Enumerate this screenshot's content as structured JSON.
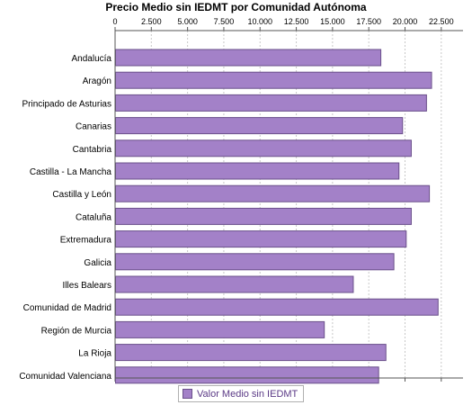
{
  "chart_data": {
    "type": "bar",
    "orientation": "horizontal",
    "title": "Precio Medio sin IEDMT por Comunidad Autónoma",
    "categories": [
      "Andalucía",
      "Aragón",
      "Principado de Asturias",
      "Canarias",
      "Cantabria",
      "Castilla - La Mancha",
      "Castilla y León",
      "Cataluña",
      "Extremadura",
      "Galicia",
      "Illes Balears",
      "Comunidad de Madrid",
      "Región de Murcia",
      "La Rioja",
      "Comunidad Valenciana"
    ],
    "series": [
      {
        "name": "Valor Medio sin IEDMT",
        "values": [
          18300,
          21800,
          21450,
          19800,
          20400,
          19550,
          21650,
          20400,
          20050,
          19200,
          16400,
          22250,
          14400,
          18650,
          18150
        ]
      }
    ],
    "xlim": [
      0,
      24000
    ],
    "x_ticks": [
      "0",
      "2.500",
      "5.000",
      "7.500",
      "10.000",
      "12.500",
      "15.000",
      "17.500",
      "20.000",
      "22.500"
    ],
    "x_tick_values": [
      0,
      2500,
      5000,
      7500,
      10000,
      12500,
      15000,
      17500,
      20000,
      22500
    ],
    "grid": true,
    "legend_position": "bottom",
    "colors": {
      "bar_fill": "#a381c8",
      "bar_stroke": "#6a4f8a",
      "grid": "#c8c8c8"
    }
  }
}
